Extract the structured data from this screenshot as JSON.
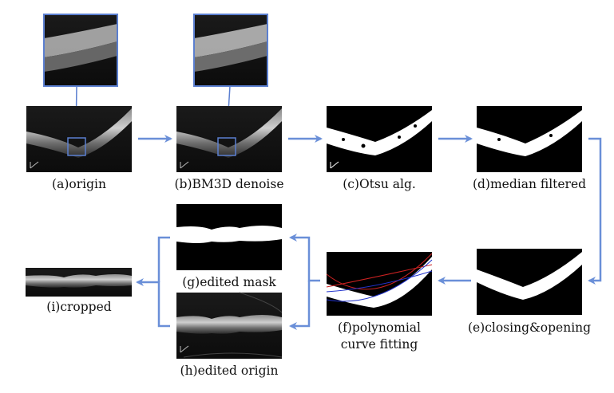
{
  "panels": {
    "a": {
      "label": "(a)origin"
    },
    "b": {
      "label": "(b)BM3D denoise"
    },
    "c": {
      "label": "(c)Otsu alg."
    },
    "d": {
      "label": "(d)median filtered"
    },
    "e": {
      "label": "(e)closing&opening"
    },
    "f": {
      "label_line1": "(f)polynomial",
      "label_line2": "curve fitting"
    },
    "g": {
      "label": "(g)edited mask"
    },
    "h": {
      "label": "(h)edited origin"
    },
    "i": {
      "label": "(i)cropped"
    }
  },
  "colors": {
    "arrow": "#6a8fd8",
    "zoom_frame": "#5b7fd0",
    "fit_red": "#cc2222",
    "fit_blue": "#2233cc"
  }
}
